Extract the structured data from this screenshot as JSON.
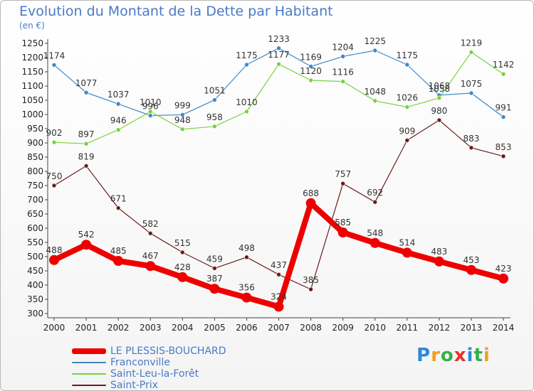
{
  "title": "Evolution du Montant de la Dette par Habitant",
  "unit": "(en €)",
  "brand": "Proxiti",
  "brand_colors": [
    "#2f88d8",
    "#f0a020",
    "#36b04a",
    "#e8302a",
    "#2f88d8",
    "#36b04a",
    "#f0a020"
  ],
  "chart_data": {
    "type": "line",
    "title": "Evolution du Montant de la Dette par Habitant",
    "ylabel": "(en €)",
    "xlabel": "",
    "x": [
      "2000",
      "2001",
      "2002",
      "2003",
      "2004",
      "2005",
      "2006",
      "2007",
      "2008",
      "2009",
      "2010",
      "2011",
      "2012",
      "2013",
      "2014"
    ],
    "ylim": [
      300,
      1250
    ],
    "yticks": [
      300,
      350,
      400,
      450,
      500,
      550,
      600,
      650,
      700,
      750,
      800,
      850,
      900,
      950,
      1000,
      1050,
      1100,
      1150,
      1200,
      1250
    ],
    "grid": false,
    "legend_position": "bottom-left",
    "series": [
      {
        "name": "LE PLESSIS-BOUCHARD",
        "color": "#ee0000",
        "values": [
          488,
          542,
          485,
          467,
          428,
          387,
          356,
          324,
          688,
          585,
          548,
          514,
          483,
          453,
          423
        ]
      },
      {
        "name": "Franconville",
        "color": "#3f87c8",
        "values": [
          1174,
          1077,
          1037,
          996,
          999,
          1051,
          1175,
          1233,
          1169,
          1204,
          1225,
          1175,
          1068,
          1075,
          991
        ]
      },
      {
        "name": "Saint-Leu-la-Forêt",
        "color": "#79d23c",
        "values": [
          902,
          897,
          946,
          1010,
          948,
          958,
          1010,
          1177,
          1120,
          1116,
          1048,
          1026,
          1058,
          1219,
          1142
        ]
      },
      {
        "name": "Saint-Prix",
        "color": "#6b1c1c",
        "values": [
          750,
          819,
          671,
          582,
          515,
          459,
          498,
          437,
          385,
          757,
          692,
          909,
          980,
          883,
          853
        ]
      }
    ]
  }
}
